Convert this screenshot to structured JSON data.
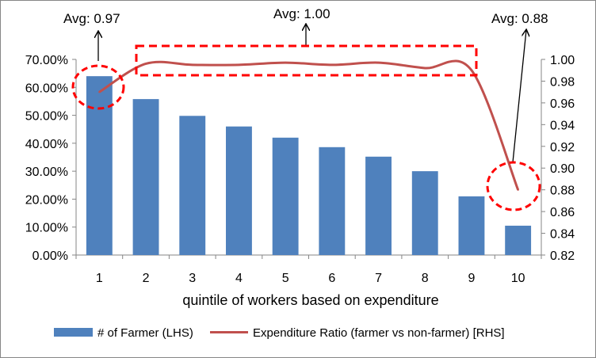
{
  "chart_data": {
    "type": "bar",
    "xlabel": "quintile of workers based on expenditure",
    "categories": [
      "1",
      "2",
      "3",
      "4",
      "5",
      "6",
      "7",
      "8",
      "9",
      "10"
    ],
    "series": [
      {
        "name": "# of Farmer (LHS)",
        "type": "bar",
        "axis": "left",
        "color": "#4F81BD",
        "values": [
          64.0,
          55.8,
          49.8,
          46.0,
          42.0,
          38.6,
          35.2,
          30.0,
          21.0,
          10.5
        ]
      },
      {
        "name": "Expenditure Ratio (farmer vs non-farmer) [RHS]",
        "type": "line",
        "axis": "right",
        "color": "#C0504D",
        "values": [
          0.97,
          0.996,
          0.995,
          0.995,
          0.997,
          0.995,
          0.997,
          0.992,
          0.99,
          0.88
        ]
      }
    ],
    "y_left": {
      "ylim": [
        0,
        70
      ],
      "ticks": [
        "0.00%",
        "10.00%",
        "20.00%",
        "30.00%",
        "40.00%",
        "50.00%",
        "60.00%",
        "70.00%"
      ]
    },
    "y_right": {
      "ylim": [
        0.82,
        1.0
      ],
      "ticks": [
        "0.82",
        "0.84",
        "0.86",
        "0.88",
        "0.90",
        "0.92",
        "0.94",
        "0.96",
        "0.98",
        "1.00"
      ]
    },
    "grid": false,
    "legend_position": "bottom",
    "annotations": [
      {
        "text": "Avg: 0.97",
        "target": "category 1"
      },
      {
        "text": "Avg: 1.00",
        "target": "categories 2-9"
      },
      {
        "text": "Avg: 0.88",
        "target": "category 10"
      }
    ],
    "highlight_color": "#FF0000"
  }
}
